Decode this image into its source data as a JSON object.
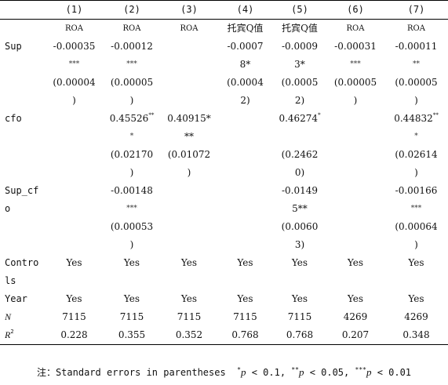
{
  "columns": [
    "(1)",
    "(2)",
    "(3)",
    "(4)",
    "(5)",
    "(6)",
    "(7)"
  ],
  "depvars": [
    "ROA",
    "ROA",
    "ROA",
    "托宾Q值",
    "托宾Q值",
    "ROA",
    "ROA"
  ],
  "rows": {
    "sup": {
      "label": "Sup",
      "coef": [
        [
          "-0.00035",
          "***"
        ],
        [
          "-0.00012",
          "***"
        ],
        [
          "",
          ""
        ],
        [
          "-0.0007",
          ""
        ],
        [
          "-0.0009",
          ""
        ],
        [
          "-0.00031",
          "***"
        ],
        [
          "-0.00011",
          "**"
        ]
      ],
      "coef_wrap": [
        "",
        "",
        "",
        "8*",
        "3*",
        "",
        ""
      ],
      "se": [
        "(0.00004",
        "(0.00005",
        "",
        "(0.0004",
        "(0.0005",
        "(0.00005",
        "(0.00005"
      ],
      "se_wrap": [
        ")",
        ")",
        "",
        "2)",
        "2)",
        ")",
        ")"
      ]
    },
    "cfo": {
      "label": "cfo",
      "coef": [
        [
          "",
          ""
        ],
        [
          "0.45526",
          "**"
        ],
        [
          "0.40915*",
          ""
        ],
        [
          "",
          ""
        ],
        [
          "0.46274",
          "*"
        ],
        [
          "",
          ""
        ],
        [
          "0.44832",
          "**"
        ]
      ],
      "coef_wrap": [
        "",
        "*",
        "**",
        "",
        "",
        "",
        "*"
      ],
      "se": [
        "",
        "(0.02170",
        "(0.01072",
        "",
        "(0.2462",
        "",
        "(0.02614"
      ],
      "se_wrap": [
        "",
        ")",
        ")",
        "",
        "0)",
        "",
        ")"
      ]
    },
    "supcfo": {
      "label": "Sup_cf",
      "label_wrap": "o",
      "coef": [
        [
          "",
          ""
        ],
        [
          "-0.00148",
          ""
        ],
        [
          "",
          ""
        ],
        [
          "",
          ""
        ],
        [
          "-0.0149",
          ""
        ],
        [
          "",
          ""
        ],
        [
          "-0.00166",
          ""
        ]
      ],
      "coef_wrap": [
        "",
        "***",
        "",
        "",
        "5**",
        "",
        "***"
      ],
      "se": [
        "",
        "(0.00053",
        "",
        "",
        "(0.0060",
        "",
        "(0.00064"
      ],
      "se_wrap": [
        "",
        ")",
        "",
        "",
        "3)",
        "",
        ")"
      ]
    },
    "controls": {
      "label": "Contro",
      "label_wrap": "ls",
      "values": [
        "Yes",
        "Yes",
        "Yes",
        "Yes",
        "Yes",
        "Yes",
        "Yes"
      ]
    },
    "year": {
      "label": "Year",
      "values": [
        "Yes",
        "Yes",
        "Yes",
        "Yes",
        "Yes",
        "Yes",
        "Yes"
      ]
    },
    "n": {
      "label": "N",
      "values": [
        "7115",
        "7115",
        "7115",
        "7115",
        "7115",
        "4269",
        "4269"
      ]
    },
    "r2": {
      "label": "R",
      "label_sup": "2",
      "values": [
        "0.228",
        "0.355",
        "0.352",
        "0.768",
        "0.768",
        "0.207",
        "0.348"
      ]
    }
  },
  "note": {
    "prefix": "注：Standard errors in parentheses",
    "s1": "*",
    "t1": "p",
    "v1": "< 0.1,",
    "s2": "**",
    "t2": "p",
    "v2": "< 0.05,",
    "s3": "***",
    "t3": "p",
    "v3": "< 0.01"
  }
}
